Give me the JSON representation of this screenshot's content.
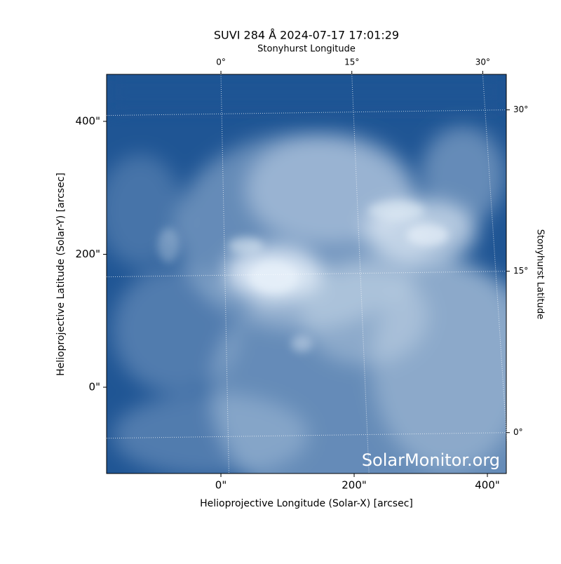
{
  "chart_data": {
    "type": "image",
    "title": "SUVI 284 Å 2024-07-17 17:01:29",
    "xlabel": "Helioprojective Longitude (Solar-X) [arcsec]",
    "ylabel": "Helioprojective Latitude (Solar-Y) [arcsec]",
    "x2label": "Stonyhurst Longitude",
    "y2label": "Stonyhurst Latitude",
    "xlim": [
      -171.6,
      428.4
    ],
    "ylim": [
      -129.8,
      470.7
    ],
    "xticks": [
      {
        "value": 0,
        "label": "0\""
      },
      {
        "value": 200,
        "label": "200\""
      },
      {
        "value": 400,
        "label": "400\""
      }
    ],
    "yticks": [
      {
        "value": 0,
        "label": "0\""
      },
      {
        "value": 200,
        "label": "200\""
      },
      {
        "value": 400,
        "label": "400\""
      }
    ],
    "x2lim": [
      -13.1,
      32.7
    ],
    "x2ticks": [
      {
        "value": 0,
        "label": "0°"
      },
      {
        "value": 15,
        "label": "15°"
      },
      {
        "value": 30,
        "label": "30°"
      }
    ],
    "y2lim": [
      -3.8,
      33.3
    ],
    "y2ticks": [
      {
        "value": 0,
        "label": "0°"
      },
      {
        "value": 15,
        "label": "15°"
      },
      {
        "value": 30,
        "label": "30°"
      }
    ],
    "grid": true,
    "colormap": [
      "#1f5594",
      "#e8f1fa"
    ],
    "watermark": "SolarMonitor.org"
  }
}
